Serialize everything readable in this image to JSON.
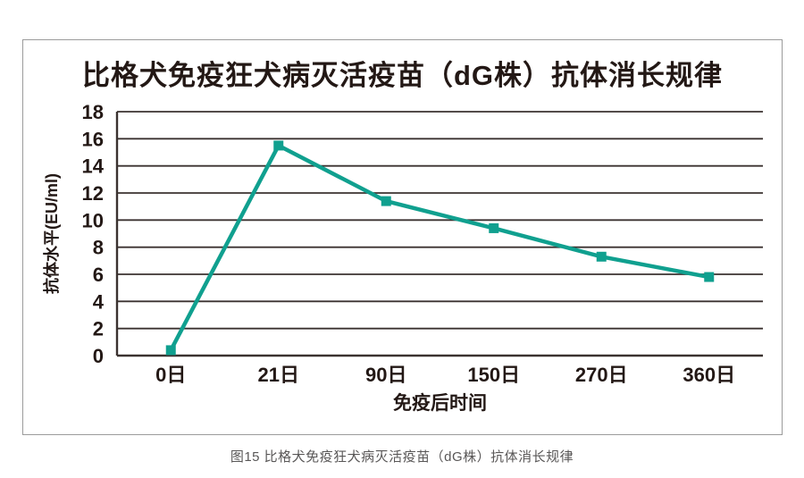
{
  "page": {
    "caption": "图15 比格犬免疫狂犬病灭活疫苗（dG株）抗体消长规律"
  },
  "chart_data": {
    "type": "line",
    "title": "比格犬免疫狂犬病灭活疫苗（dG株）抗体消长规律",
    "categories": [
      "0日",
      "21日",
      "90日",
      "150日",
      "270日",
      "360日"
    ],
    "series": [
      {
        "name": "抗体水平",
        "values": [
          0.4,
          15.5,
          11.4,
          9.4,
          7.3,
          5.8
        ]
      }
    ],
    "xlabel": "免疫后时间",
    "ylabel": "抗体水平(EU/ml)",
    "ylim": [
      0,
      18
    ],
    "ytick_step": 2,
    "grid": true,
    "legend": "none",
    "line_color": "#10a08f",
    "marker": "square",
    "axis_color": "#3b3230",
    "text_color": "#231815"
  }
}
